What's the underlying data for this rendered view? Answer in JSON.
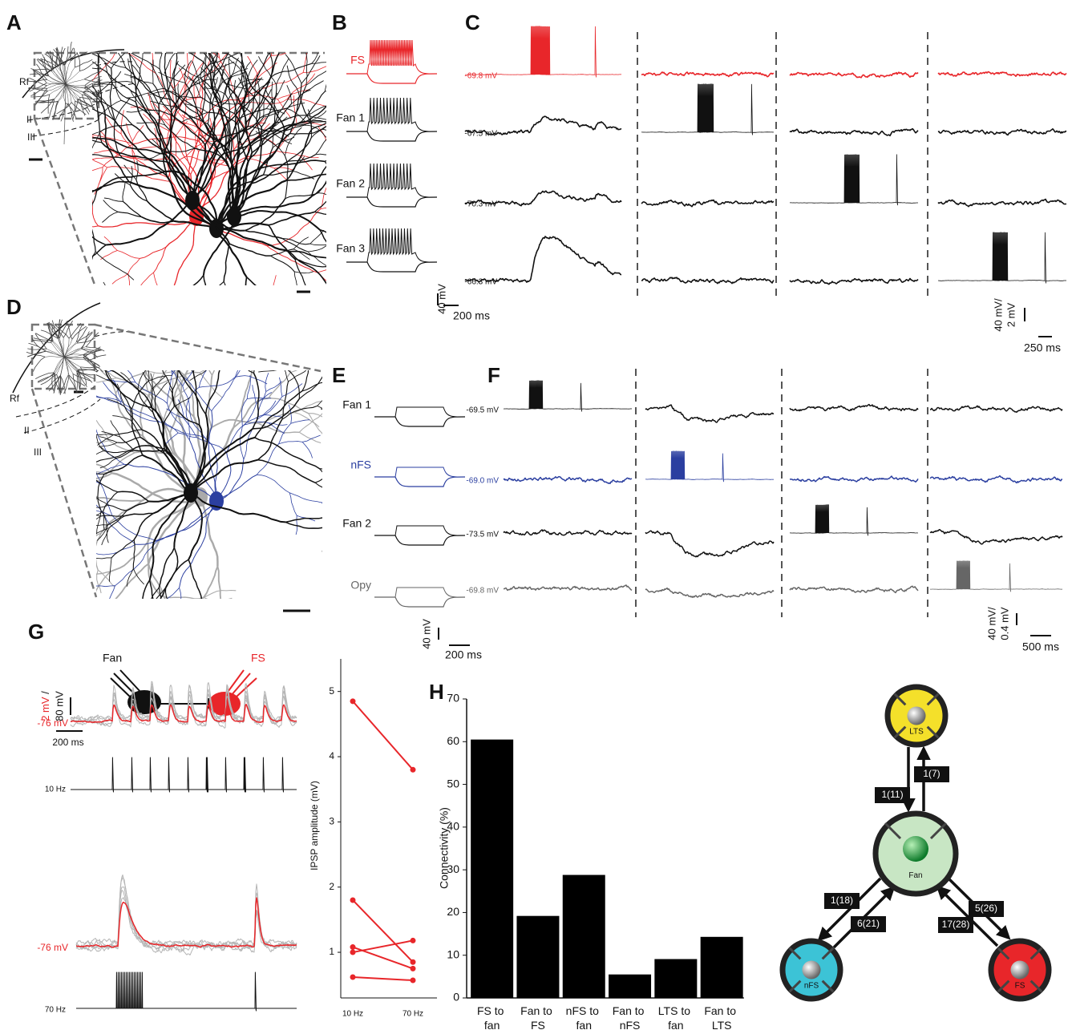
{
  "panel_labels": [
    "A",
    "B",
    "C",
    "D",
    "E",
    "F",
    "G",
    "H"
  ],
  "panel_a": {
    "rf": "Rf",
    "layers": [
      "II",
      "III"
    ]
  },
  "panel_b": {
    "cells": [
      "FS",
      "Fan 1",
      "Fan 2",
      "Fan 3"
    ],
    "scale_voltage": "40 mV",
    "scale_time": "200 ms"
  },
  "panel_c": {
    "potentials": [
      "-69.8 mV",
      "-67.5 mV",
      "-70.3 mV",
      "-66.3 mV"
    ],
    "scale_voltage": [
      "40 mV/",
      "2 mV"
    ],
    "scale_time": "250 ms"
  },
  "panel_d": {
    "rf": "Rf",
    "layers": [
      "II",
      "III"
    ]
  },
  "panel_e": {
    "cells": [
      "Fan 1",
      "nFS",
      "Fan 2",
      "Opy"
    ],
    "scale_voltage": "40 mV",
    "scale_time": "200 ms"
  },
  "panel_f": {
    "potentials": [
      "-69.5 mV",
      "-69.0 mV",
      "-73.5 mV",
      "-69.8 mV"
    ],
    "scale_voltage": [
      "40 mV/",
      "0.4 mV"
    ],
    "scale_time": "500 ms"
  },
  "panel_g": {
    "cells": [
      "Fan",
      "FS"
    ],
    "scale_voltage": [
      "2 mV",
      "/",
      "80 mV"
    ],
    "scale_time": "200 ms",
    "potentials": [
      "-76 mV",
      "-76 mV"
    ],
    "stimuli": [
      "10 Hz",
      "70 Hz"
    ]
  },
  "chart_data": [
    {
      "type": "line",
      "ylabel": "IPSP amplitude (mV)",
      "categories": [
        "10 Hz",
        "70 Hz"
      ],
      "series": [
        {
          "color": "#e8262a",
          "values": [
            4.85,
            3.8
          ]
        },
        {
          "color": "#e8262a",
          "values": [
            1.8,
            0.85
          ]
        },
        {
          "color": "#e8262a",
          "values": [
            1.08,
            0.75
          ]
        },
        {
          "color": "#e8262a",
          "values": [
            1.0,
            1.18
          ]
        },
        {
          "color": "#e8262a",
          "values": [
            0.62,
            0.57
          ]
        }
      ],
      "ylim": [
        0.3,
        5.5
      ],
      "yticks": [
        1,
        2,
        3,
        4,
        5
      ]
    },
    {
      "type": "bar",
      "ylabel": "Connectivity (%)",
      "categories": [
        "FS to fan",
        "Fan to FS",
        "nFS to fan",
        "Fan to nFS",
        "LTS to fan",
        "Fan to LTS"
      ],
      "values": [
        60.5,
        19.2,
        28.8,
        5.5,
        9.1,
        14.3
      ],
      "color": "#000000",
      "ylim": [
        0,
        70
      ],
      "yticks": [
        0,
        10,
        20,
        30,
        40,
        50,
        60,
        70
      ]
    }
  ],
  "diagram": {
    "nodes": [
      "LTS",
      "Fan",
      "nFS",
      "FS"
    ],
    "edges": [
      "1(11)",
      "1(7)",
      "1(18)",
      "6(21)",
      "5(26)",
      "17(28)"
    ]
  }
}
